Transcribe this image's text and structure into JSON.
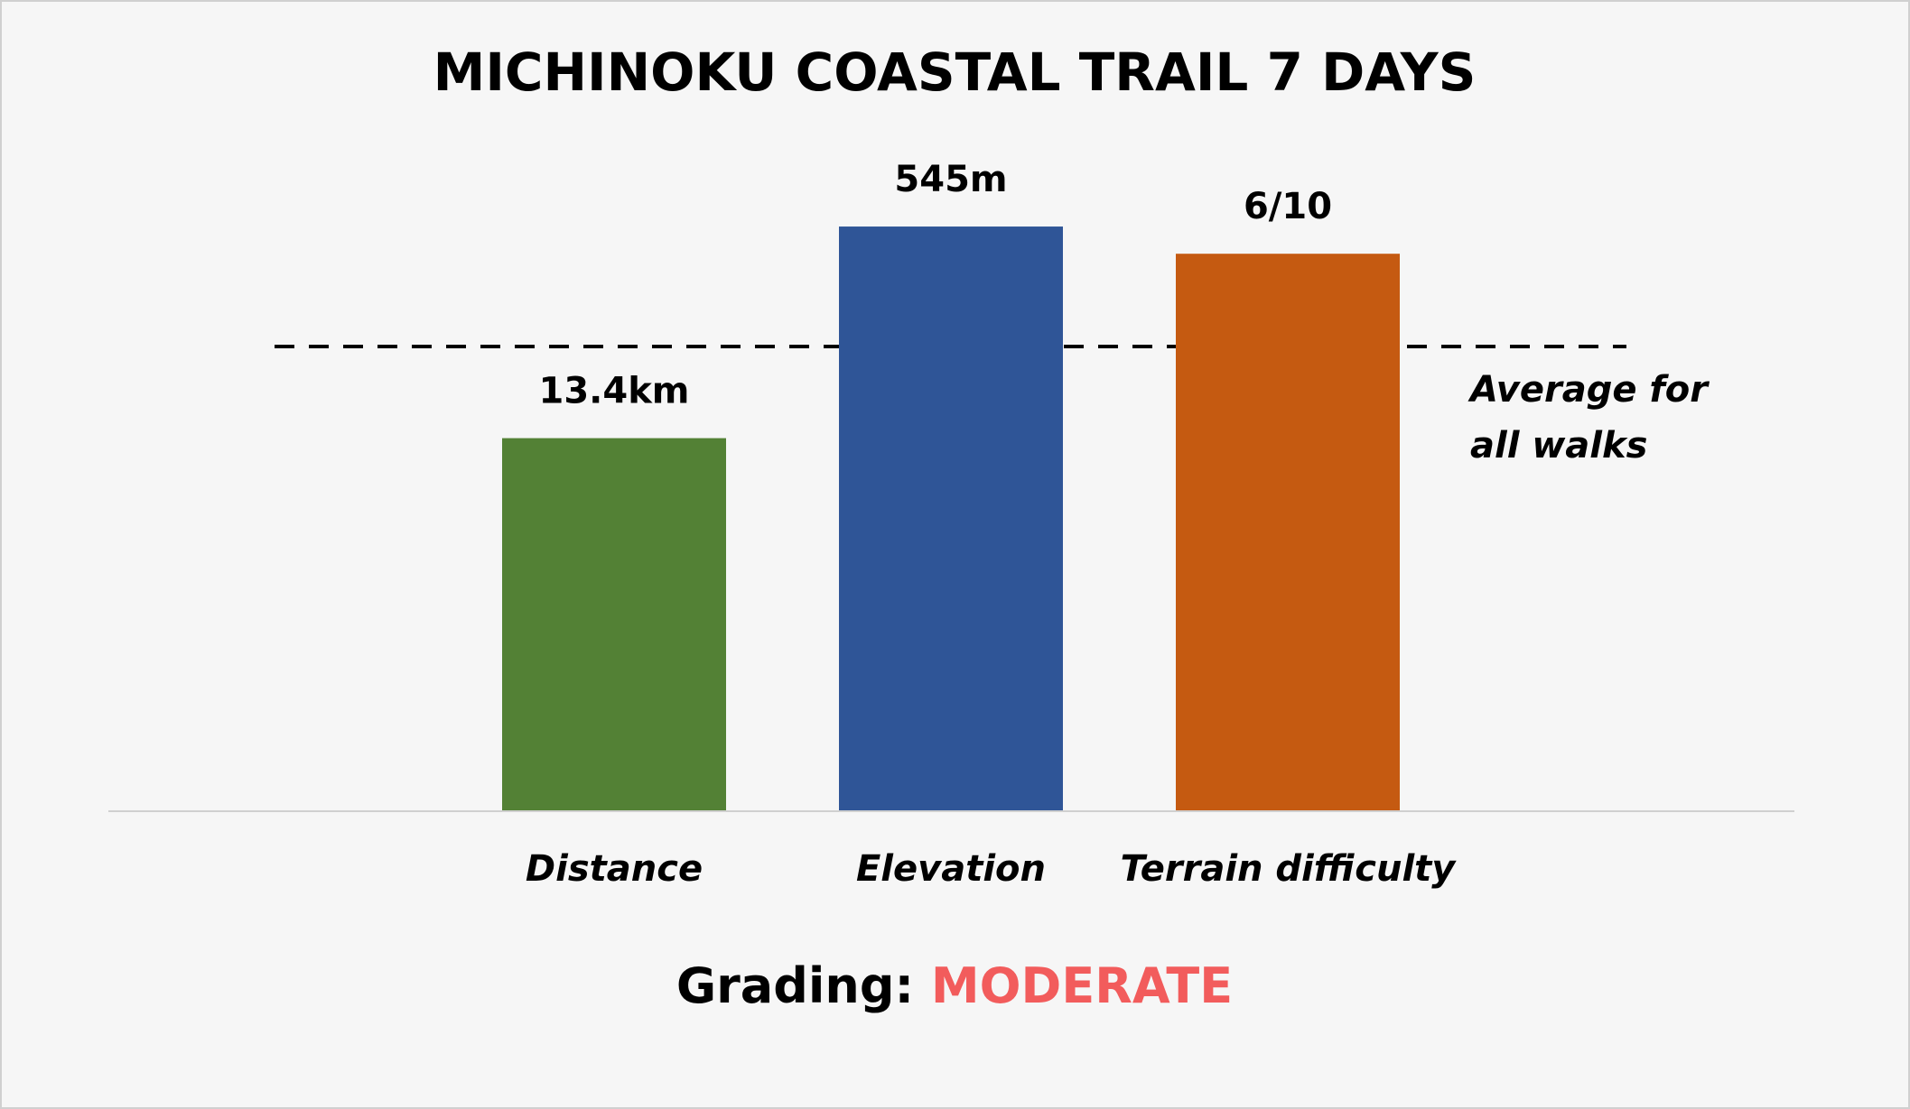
{
  "chart_data": {
    "type": "bar",
    "title": "MICHINOKU COASTAL TRAIL 7 DAYS",
    "categories": [
      "Distance",
      "Elevation",
      "Terrain difficulty"
    ],
    "values": [
      13.4,
      545,
      6
    ],
    "value_labels": [
      "13.4km",
      "545m",
      "6/10"
    ],
    "colors": [
      "#538135",
      "#2f5597",
      "#c55a11"
    ],
    "average_values": [
      16.7,
      433,
      5
    ],
    "average_label": [
      "Average for",
      "all walks"
    ],
    "grading_label": "Grading:",
    "grading": "MODERATE",
    "grading_color": "#f25c5c"
  }
}
